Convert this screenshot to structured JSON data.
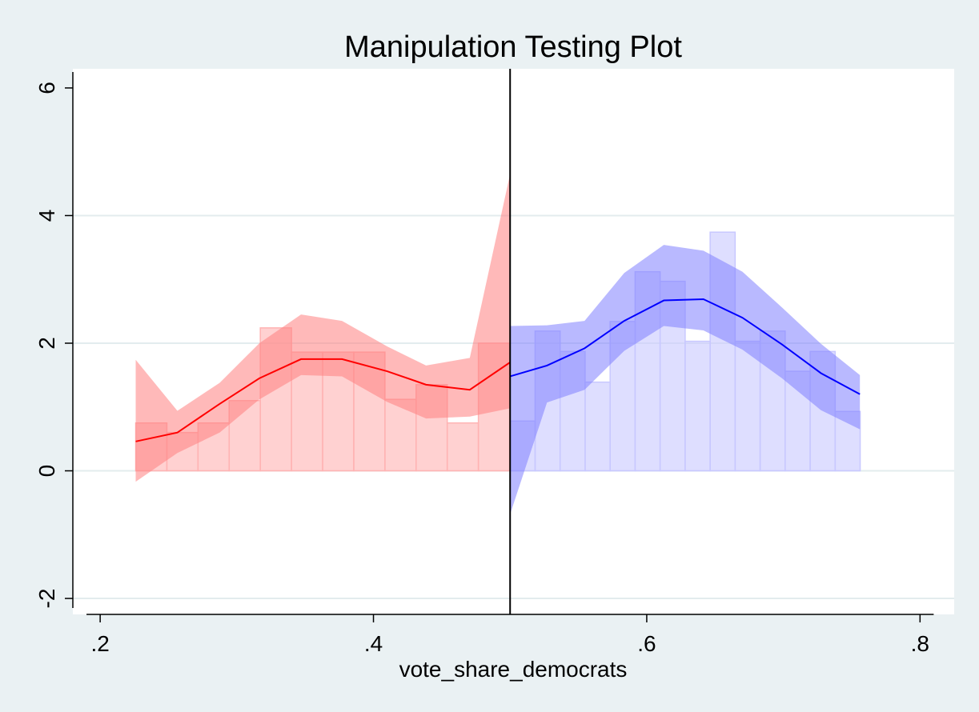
{
  "chart_data": {
    "type": "bar",
    "title": "Manipulation Testing Plot",
    "xlabel": "vote_share_democrats",
    "ylabel": "",
    "xlim": [
      0.18,
      0.825
    ],
    "ylim": [
      -2.25,
      6.3
    ],
    "cutoff": 0.5,
    "grid": true,
    "x_ticks": [
      {
        "value": 0.2,
        "label": ".2"
      },
      {
        "value": 0.4,
        "label": ".4"
      },
      {
        "value": 0.6,
        "label": ".6"
      },
      {
        "value": 0.8,
        "label": ".8"
      }
    ],
    "y_ticks": [
      {
        "value": -2,
        "label": "-2"
      },
      {
        "value": 0,
        "label": "0"
      },
      {
        "value": 2,
        "label": "2"
      },
      {
        "value": 4,
        "label": "4"
      },
      {
        "value": 6,
        "label": "6"
      }
    ],
    "series": [
      {
        "side": "left",
        "line_color": "#ff0000",
        "band_color": "#ff7f7f",
        "bar_color": "#ffb3b3",
        "bin_width": 0.0228,
        "bins": [
          {
            "start": 0.226,
            "height": 0.75
          },
          {
            "start": 0.2488,
            "height": 0.6
          },
          {
            "start": 0.2716,
            "height": 0.75
          },
          {
            "start": 0.2944,
            "height": 1.1
          },
          {
            "start": 0.3172,
            "height": 2.24
          },
          {
            "start": 0.34,
            "height": 1.86
          },
          {
            "start": 0.3628,
            "height": 1.86
          },
          {
            "start": 0.3856,
            "height": 1.86
          },
          {
            "start": 0.4084,
            "height": 1.12
          },
          {
            "start": 0.4312,
            "height": 1.35
          },
          {
            "start": 0.454,
            "height": 0.75
          },
          {
            "start": 0.4768,
            "height": 2.0
          }
        ],
        "fit_x": [
          0.226,
          0.2565,
          0.2875,
          0.3165,
          0.347,
          0.377,
          0.41,
          0.4385,
          0.4705,
          0.5
        ],
        "fit_y": [
          0.46,
          0.6,
          1.05,
          1.45,
          1.75,
          1.75,
          1.56,
          1.35,
          1.27,
          1.7
        ],
        "ci_lower": [
          -0.17,
          0.28,
          0.6,
          1.12,
          1.5,
          1.48,
          1.08,
          0.82,
          0.85,
          0.98
        ],
        "ci_upper": [
          1.74,
          0.94,
          1.38,
          2.0,
          2.45,
          2.35,
          1.95,
          1.65,
          1.77,
          4.65
        ]
      },
      {
        "side": "right",
        "line_color": "#0000ff",
        "band_color": "#8080ff",
        "bar_color": "#c8c8ff",
        "bin_width": 0.0183,
        "bins": [
          {
            "start": 0.5,
            "height": 0.78
          },
          {
            "start": 0.5183,
            "height": 2.19
          },
          {
            "start": 0.5366,
            "height": 1.87
          },
          {
            "start": 0.5549,
            "height": 1.39
          },
          {
            "start": 0.5732,
            "height": 2.34
          },
          {
            "start": 0.5915,
            "height": 3.12
          },
          {
            "start": 0.6098,
            "height": 2.97
          },
          {
            "start": 0.6281,
            "height": 2.03
          },
          {
            "start": 0.6464,
            "height": 3.74
          },
          {
            "start": 0.6647,
            "height": 2.03
          },
          {
            "start": 0.683,
            "height": 2.19
          },
          {
            "start": 0.7013,
            "height": 1.56
          },
          {
            "start": 0.7196,
            "height": 1.87
          },
          {
            "start": 0.7379,
            "height": 0.93
          }
        ],
        "fit_x": [
          0.5,
          0.527,
          0.5545,
          0.5835,
          0.6125,
          0.6415,
          0.67,
          0.699,
          0.7275,
          0.756
        ],
        "fit_y": [
          1.48,
          1.65,
          1.92,
          2.35,
          2.67,
          2.69,
          2.4,
          1.98,
          1.53,
          1.2
        ],
        "ci_lower": [
          -0.68,
          1.07,
          1.27,
          1.88,
          2.27,
          2.2,
          1.9,
          1.45,
          0.95,
          0.65
        ],
        "ci_upper": [
          2.27,
          2.28,
          2.35,
          3.1,
          3.54,
          3.45,
          3.12,
          2.56,
          1.99,
          1.5
        ]
      }
    ]
  }
}
